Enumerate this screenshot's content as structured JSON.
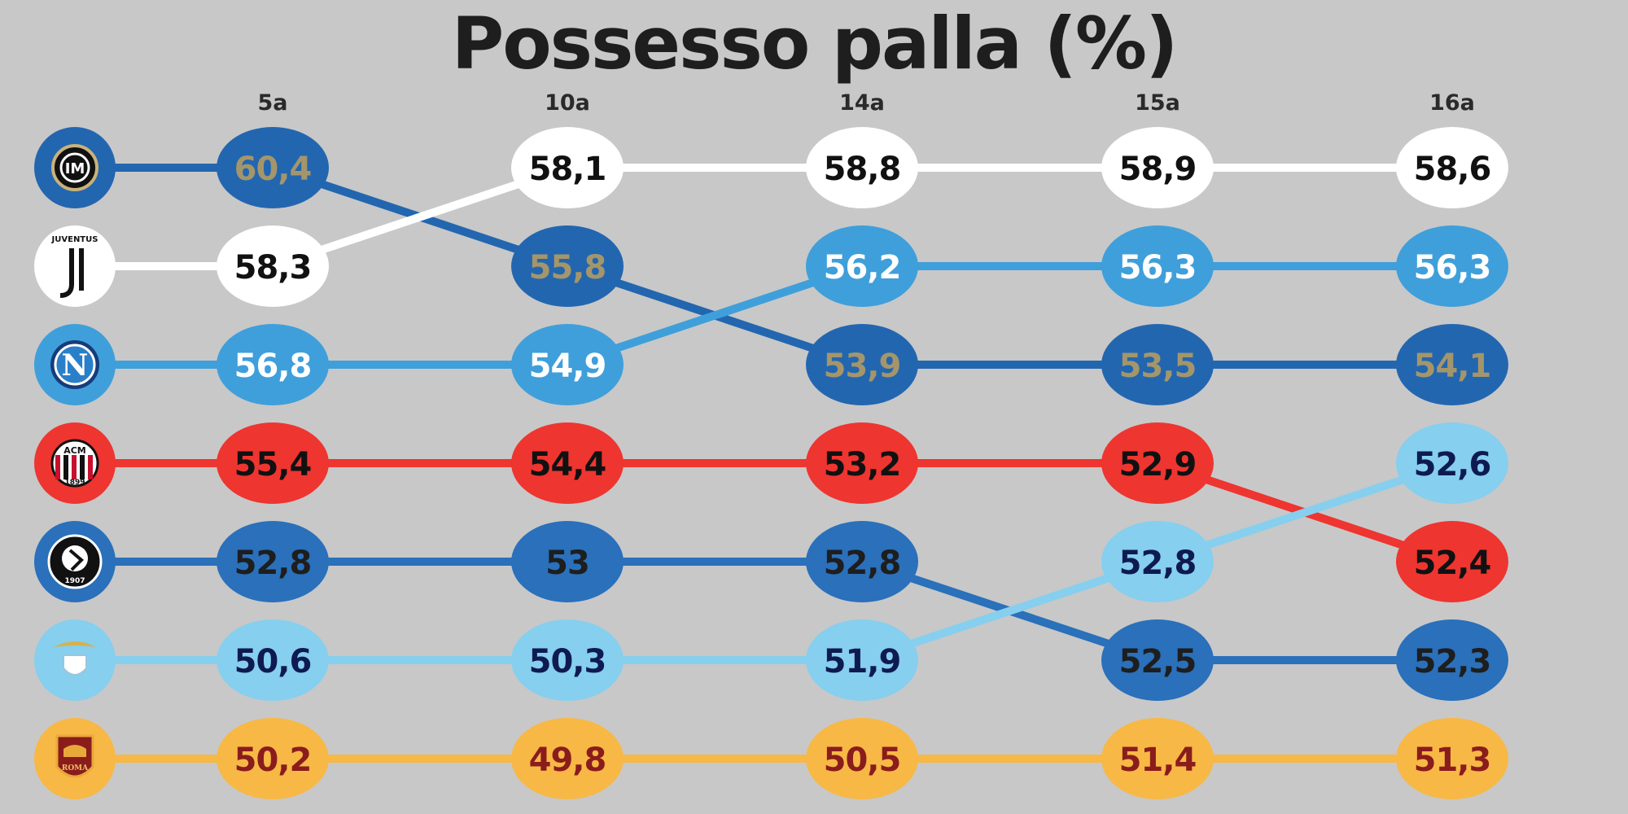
{
  "title": "Possesso palla (%)",
  "chart_data": {
    "type": "line",
    "title": "Possesso palla (%)",
    "rounds": [
      "5a",
      "10a",
      "14a",
      "15a",
      "16a"
    ],
    "series": [
      {
        "team_icon": "inter-crest-icon",
        "color": "#2366b0",
        "bubble": "#2366b0",
        "text": "#a4966a",
        "values": [
          "60,4",
          "55,8",
          "53,9",
          "53,5",
          "54,1"
        ]
      },
      {
        "team_icon": "juventus-crest-icon",
        "color": "#ffffff",
        "bubble": "#ffffff",
        "text": "#111111",
        "values": [
          "58,3",
          "58,1",
          "58,8",
          "58,9",
          "58,6"
        ]
      },
      {
        "team_icon": "napoli-crest-icon",
        "color": "#3f9fdb",
        "bubble": "#3f9fdb",
        "text": "#ffffff",
        "values": [
          "56,8",
          "54,9",
          "56,2",
          "56,3",
          "56,3"
        ]
      },
      {
        "team_icon": "milan-crest-icon",
        "color": "#ee3530",
        "bubble": "#ee3530",
        "text": "#111111",
        "values": [
          "55,4",
          "54,4",
          "53,2",
          "52,9",
          "52,4"
        ]
      },
      {
        "team_icon": "atalanta-crest-icon",
        "color": "#2a70bb",
        "bubble": "#2a70bb",
        "text": "#1e1e1e",
        "values": [
          "52,8",
          "53",
          "52,8",
          "52,5",
          "52,3"
        ]
      },
      {
        "team_icon": "lazio-crest-icon",
        "color": "#86cfee",
        "bubble": "#86cfee",
        "text": "#0e1a52",
        "values": [
          "50,6",
          "50,3",
          "51,9",
          "52,8",
          "52,6"
        ]
      },
      {
        "team_icon": "roma-crest-icon",
        "color": "#f7b845",
        "bubble": "#f7b845",
        "text": "#8a1c1c",
        "values": [
          "50,2",
          "49,8",
          "50,5",
          "51,4",
          "51,3"
        ]
      }
    ],
    "ranking": "rank by value within each round, highest at top"
  }
}
